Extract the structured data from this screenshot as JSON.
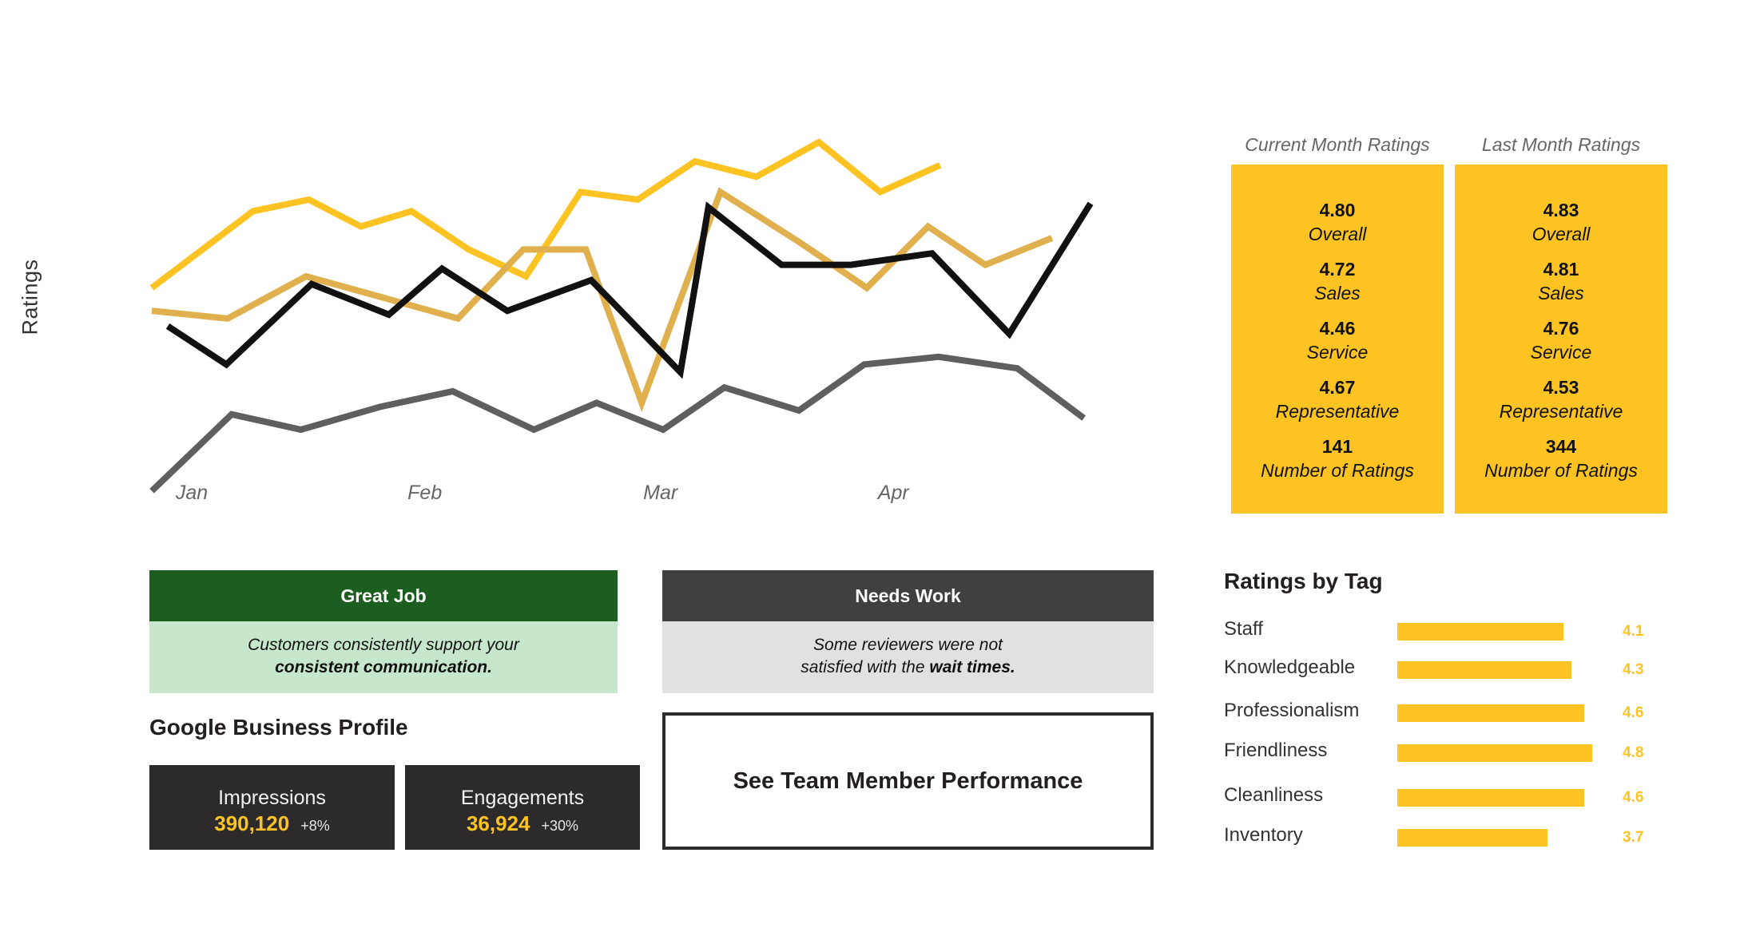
{
  "chart_data": {
    "type": "line",
    "title": "",
    "ylabel": "Ratings",
    "xlabel": "",
    "categories": [
      "Jan",
      "Feb",
      "Mar",
      "Apr"
    ],
    "ylim": [
      0,
      100
    ],
    "series": [
      {
        "name": "Yellow",
        "color": "#fcc323",
        "x": [
          0,
          0.38,
          0.76,
          1.18,
          1.57,
          1.95,
          2.38,
          2.81,
          3.22,
          3.65,
          4.08,
          4.54,
          5.01,
          5.47,
          5.92
        ],
        "y": [
          52,
          62,
          72,
          75,
          68,
          72,
          62,
          55,
          77,
          75,
          85,
          81,
          90,
          77,
          84
        ]
      },
      {
        "name": "Gold",
        "color": "#dfb04d",
        "x": [
          0,
          0.57,
          1.16,
          1.68,
          2.3,
          2.79,
          3.26,
          3.68,
          4.27,
          4.86,
          5.37,
          5.83,
          6.26,
          6.76
        ],
        "y": [
          46,
          44,
          55,
          50,
          44,
          62,
          62,
          22,
          77,
          64,
          52,
          68,
          58,
          65
        ]
      },
      {
        "name": "Black",
        "color": "#111111",
        "x": [
          0.12,
          0.56,
          1.2,
          1.78,
          2.18,
          2.67,
          3.3,
          3.97,
          4.18,
          4.73,
          5.25,
          5.86,
          6.44,
          7.05
        ],
        "y": [
          42,
          32,
          53,
          45,
          57,
          46,
          54,
          30,
          73,
          58,
          58,
          61,
          40,
          74
        ]
      },
      {
        "name": "Gray",
        "color": "#5f5f5f",
        "x": [
          0,
          0.6,
          1.12,
          1.72,
          2.26,
          2.87,
          3.34,
          3.84,
          4.3,
          4.86,
          5.35,
          5.91,
          6.5,
          7.0
        ],
        "y": [
          -1,
          19,
          15,
          21,
          25,
          15,
          22,
          15,
          26,
          20,
          32,
          34,
          31,
          18
        ]
      }
    ]
  },
  "current": {
    "heading": "Current Month Ratings",
    "overall": "4.80",
    "overall_label": "Overall",
    "sales": "4.72",
    "sales_label": "Sales",
    "service": "4.46",
    "service_label": "Service",
    "rep": "4.67",
    "rep_label": "Representative",
    "count": "141",
    "count_label": "Number of Ratings"
  },
  "last": {
    "heading": "Last Month Ratings",
    "overall": "4.83",
    "overall_label": "Overall",
    "sales": "4.81",
    "sales_label": "Sales",
    "service": "4.76",
    "service_label": "Service",
    "rep": "4.53",
    "rep_label": "Representative",
    "count": "344",
    "count_label": "Number of Ratings"
  },
  "great_job": {
    "title": "Great Job",
    "text": "Customers consistently support your",
    "highlight": "consistent communication.",
    "color": "#1c5e20",
    "bg": "#c6e7cb"
  },
  "needs_work": {
    "title": "Needs Work",
    "text1": "Some reviewers were not",
    "text2": "satisfied with the",
    "highlight": "wait times.",
    "color": "#404040",
    "bg": "#e1e1e1"
  },
  "gbp": {
    "title": "Google Business Profile",
    "impressions": {
      "label": "Impressions",
      "value": "390,120",
      "delta": "+8%"
    },
    "engagements": {
      "label": "Engagements",
      "value": "36,924",
      "delta": "+30%"
    }
  },
  "team_button": "See Team Member Performance",
  "tags": {
    "title": "Ratings by Tag",
    "max": 5,
    "items": [
      {
        "label": "Staff",
        "value": 4.1,
        "display": "4.1"
      },
      {
        "label": "Knowledgeable",
        "value": 4.3,
        "display": "4.3"
      },
      {
        "label": "Professionalism",
        "value": 4.6,
        "display": "4.6"
      },
      {
        "label": "Friendliness",
        "value": 4.8,
        "display": "4.8"
      },
      {
        "label": "Cleanliness",
        "value": 4.6,
        "display": "4.6"
      },
      {
        "label": "Inventory",
        "value": 3.7,
        "display": "3.7"
      }
    ]
  },
  "colors": {
    "accent": "#fcc323",
    "dark": "#2d2a2b"
  }
}
